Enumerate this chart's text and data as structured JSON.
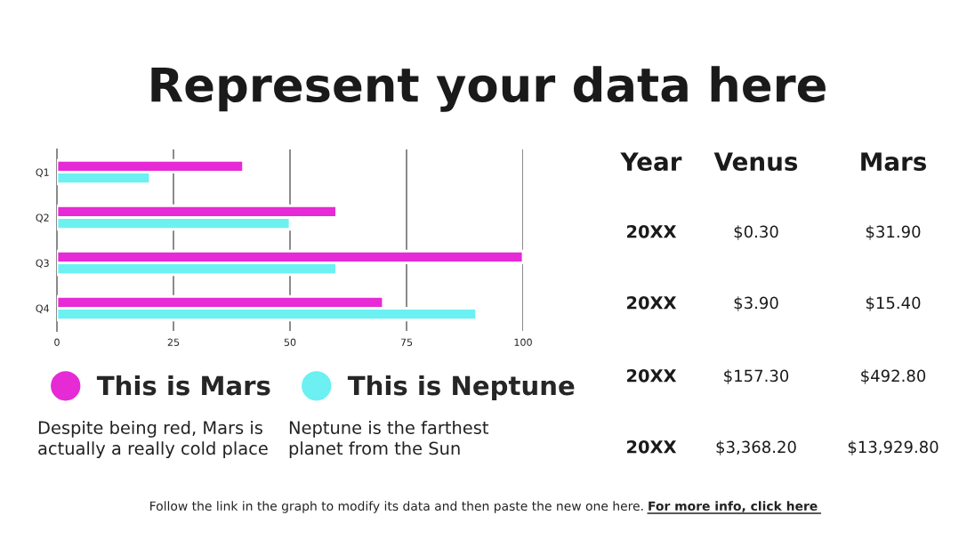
{
  "chart_data": [
    {
      "type": "bar",
      "title": "Represent your data here",
      "orientation": "horizontal",
      "categories": [
        "Q1",
        "Q2",
        "Q3",
        "Q4"
      ],
      "series": [
        {
          "name": "This is Mars",
          "color": "#e62ad6",
          "values": [
            40,
            60,
            100,
            70
          ]
        },
        {
          "name": "This is Neptune",
          "color": "#6cf0f2",
          "values": [
            20,
            50,
            60,
            90
          ]
        }
      ],
      "xlim": [
        0,
        100
      ],
      "xticks": [
        0,
        25,
        50,
        75,
        100
      ],
      "grid": "x",
      "legend": "bottom",
      "annotations": [
        "Despite being red, Mars is\nactually a really cold place",
        "Neptune is the farthest\nplanet from the Sun",
        "Follow the link in the graph to modify its data and then paste the new one here.",
        "For more info, click here"
      ]
    },
    {
      "type": "other",
      "annotations": [
        "Year",
        "Venus",
        "Mars",
        "20XX",
        "$0.30",
        "$31.90",
        "20XX",
        "$3.90",
        "$15.40",
        "20XX",
        "$157.30",
        "$492.80",
        "20XX",
        "$3,368.20",
        "$13,929.80"
      ]
    }
  ]
}
